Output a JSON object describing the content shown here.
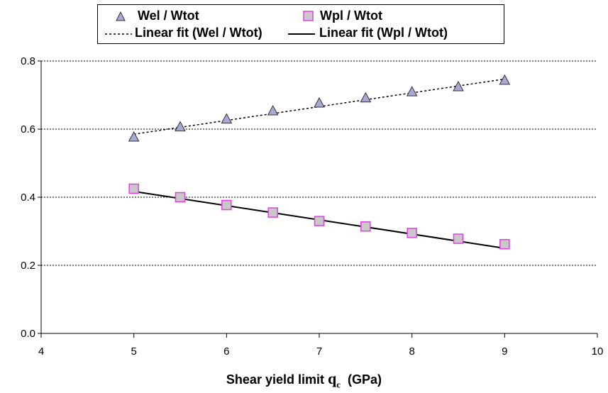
{
  "chart_data": {
    "type": "scatter",
    "x": [
      5,
      5.5,
      6,
      6.5,
      7,
      7.5,
      8,
      8.5,
      9
    ],
    "series": [
      {
        "name": "Wel / Wtot",
        "marker": "triangle",
        "color": "#a9a9d6",
        "edge_color": "#333333",
        "values": [
          0.575,
          0.605,
          0.628,
          0.652,
          0.675,
          0.69,
          0.708,
          0.723,
          0.742
        ]
      },
      {
        "name": "Wpl / Wtot",
        "marker": "square",
        "color": "#c8c8c8",
        "edge_color": "#e040e0",
        "values": [
          0.425,
          0.4,
          0.377,
          0.355,
          0.33,
          0.314,
          0.295,
          0.278,
          0.262
        ]
      }
    ],
    "fits": [
      {
        "name": "Linear fit (Wel / Wtot)",
        "style": "dotted",
        "x": [
          5,
          9
        ],
        "y": [
          0.585,
          0.747
        ]
      },
      {
        "name": "Linear fit (Wpl / Wtot)",
        "style": "solid",
        "x": [
          5,
          9
        ],
        "y": [
          0.417,
          0.25
        ]
      }
    ],
    "xlabel": "Shear yield limit",
    "xlabel_symbol": "q",
    "xlabel_subscript": "c",
    "xlabel_unit": "(GPa)",
    "ylabel": "",
    "xlim": [
      4,
      10
    ],
    "ylim": [
      0.0,
      0.8
    ],
    "xticks": [
      "4",
      "5",
      "6",
      "7",
      "8",
      "9",
      "10"
    ],
    "yticks": [
      "0.0",
      "0.2",
      "0.4",
      "0.6",
      "0.8"
    ],
    "grid": "horizontal dotted",
    "legend_placement": "top"
  }
}
